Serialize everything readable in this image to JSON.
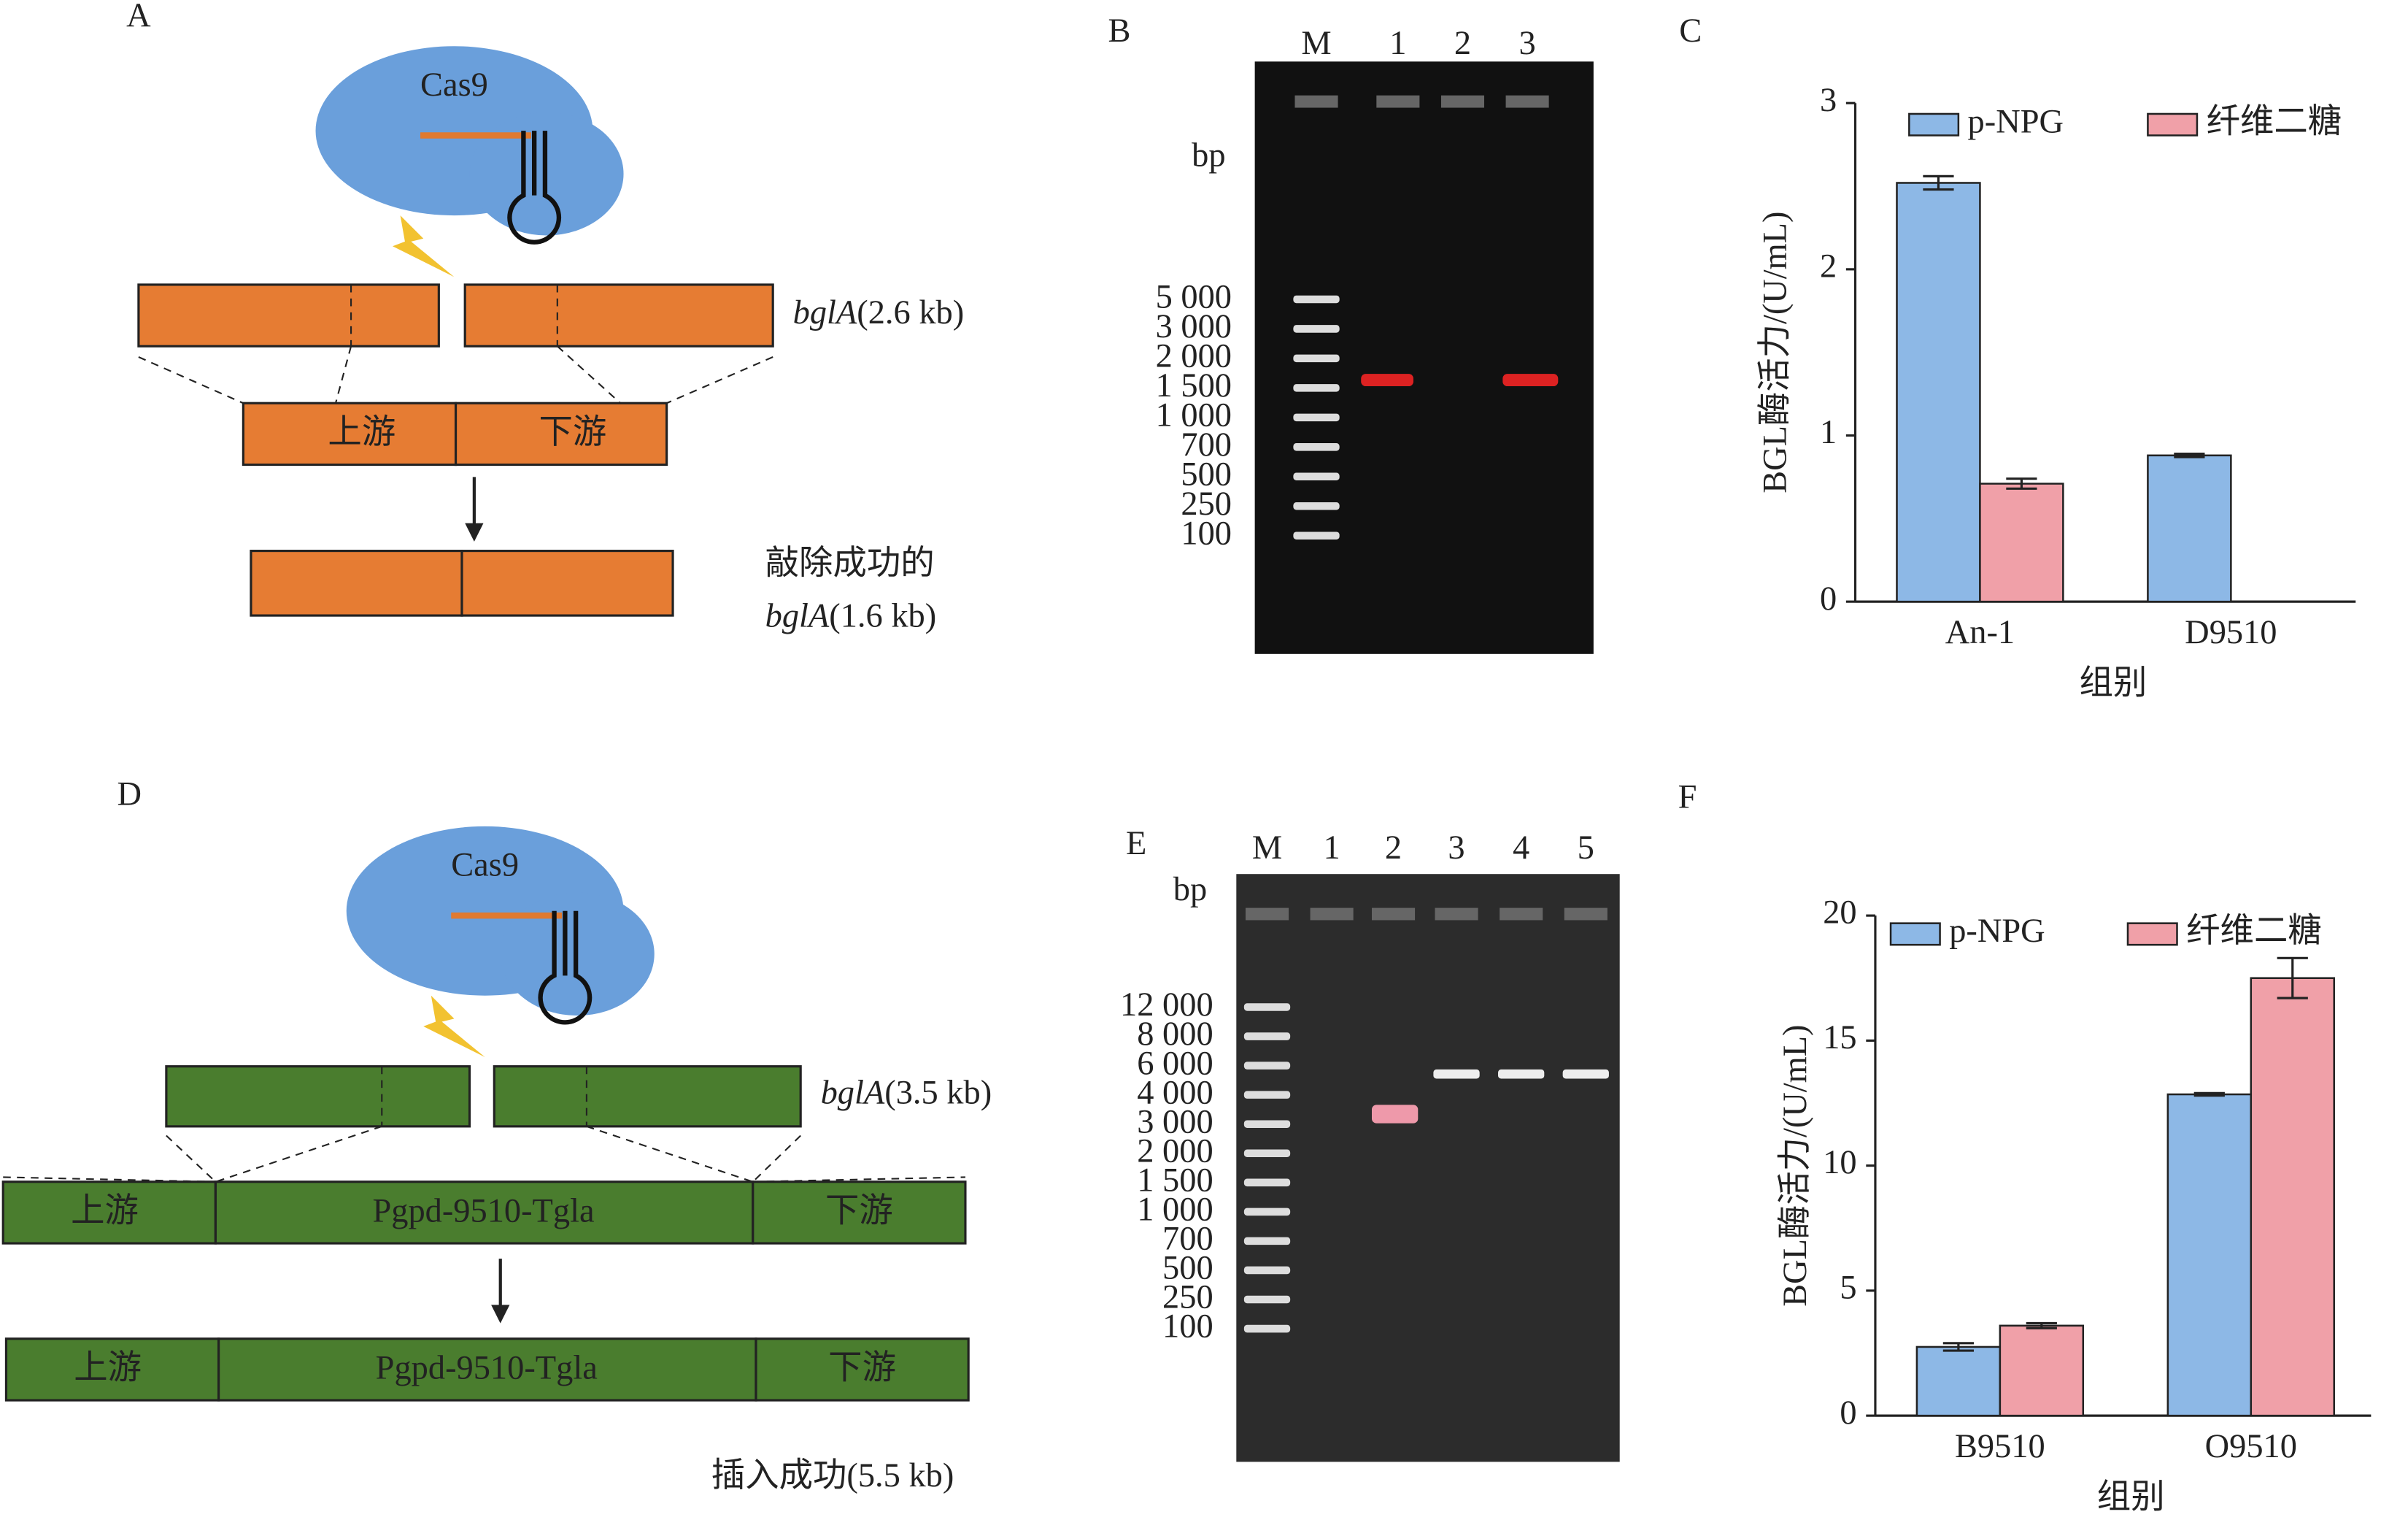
{
  "panels": {
    "A": {
      "letter": "A",
      "cas9": "Cas9",
      "gene": "bglA",
      "gene_size": "(2.6 kb)",
      "upstream": "上游",
      "downstream": "下游",
      "result": "敲除成功的",
      "result_gene": "bglA",
      "result_size": "(1.6 kb)"
    },
    "B": {
      "letter": "B",
      "lanes": [
        "M",
        "1",
        "2",
        "3"
      ],
      "unit": "bp",
      "markers": [
        "5 000",
        "3 000",
        "2 000",
        "1 500",
        "1 000",
        "700",
        "500",
        "250",
        "100"
      ]
    },
    "D": {
      "letter": "D",
      "cas9": "Cas9",
      "gene": "bglA",
      "gene_size": "(3.5 kb)",
      "upstream": "上游",
      "insert": "Pgpd-9510-Tgla",
      "downstream": "下游",
      "result": "插入成功(5.5 kb)"
    },
    "E": {
      "letter": "E",
      "lanes": [
        "M",
        "1",
        "2",
        "3",
        "4",
        "5"
      ],
      "unit": "bp",
      "markers": [
        "12 000",
        "8 000",
        "6 000",
        "4 000",
        "3 000",
        "2 000",
        "1 500",
        "1 000",
        "700",
        "500",
        "250",
        "100"
      ]
    }
  },
  "chart_data": [
    {
      "type": "bar",
      "panel_label": "C",
      "ylabel": "BGL酶活力/(U/mL)",
      "xlabel": "组别",
      "categories": [
        "An-1",
        "D9510"
      ],
      "series": [
        {
          "name": "p-NPG",
          "color": "#8db8e6",
          "values": [
            2.52,
            0.88
          ],
          "errors": [
            0.04,
            0.01
          ]
        },
        {
          "name": "纤维二糖",
          "color": "#f0a0a8",
          "values": [
            0.71,
            null
          ],
          "errors": [
            0.03,
            null
          ]
        }
      ],
      "ylim": [
        0,
        3
      ],
      "yticks": [
        0,
        1,
        2,
        3
      ]
    },
    {
      "type": "bar",
      "panel_label": "F",
      "ylabel": "BGL酶活力/(U/mL)",
      "xlabel": "组别",
      "categories": [
        "B9510",
        "O9510"
      ],
      "series": [
        {
          "name": "p-NPG",
          "color": "#8db8e6",
          "values": [
            2.75,
            12.85
          ],
          "errors": [
            0.15,
            0.05
          ]
        },
        {
          "name": "纤维二糖",
          "color": "#f0a0a8",
          "values": [
            3.6,
            17.5
          ],
          "errors": [
            0.1,
            0.8
          ]
        }
      ],
      "ylim": [
        0,
        20
      ],
      "yticks": [
        0,
        5,
        10,
        15,
        20
      ]
    }
  ]
}
